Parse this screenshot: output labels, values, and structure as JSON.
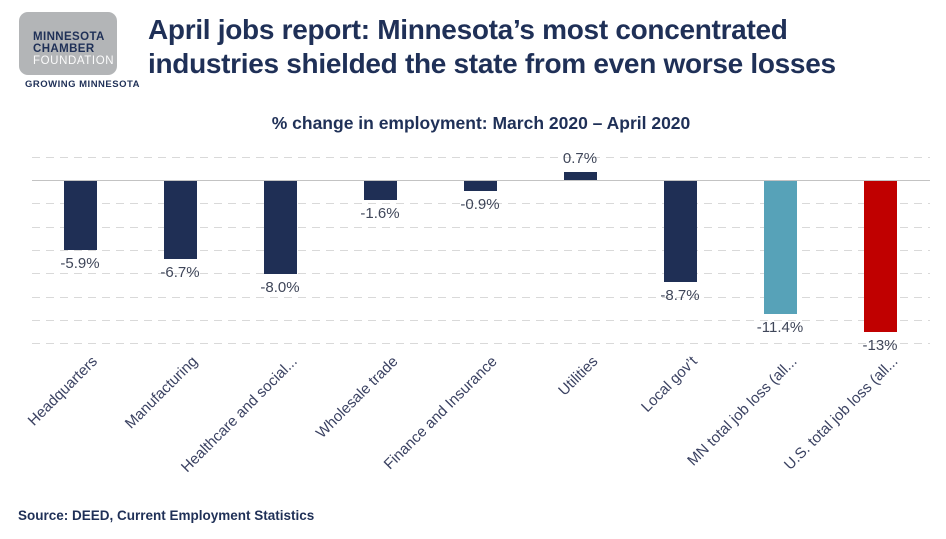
{
  "logo": {
    "line1": "MINNESOTA",
    "line2": "CHAMBER",
    "line3": "FOUNDATION",
    "tagline": "GROWING MINNESOTA"
  },
  "header": {
    "title_line1": "April jobs report: Minnesota’s most concentrated",
    "title_line2": "industries shielded the state from even worse losses"
  },
  "chart_data": {
    "type": "bar",
    "title": "% change in employment: March 2020 – April 2020",
    "categories": [
      "Headquarters",
      "Manufacturing",
      "Healthcare and social...",
      "Wholesale trade",
      "Finance and Insurance",
      "Utilities",
      "Local gov’t",
      "MN total job loss (all...",
      "U.S. total job loss (all..."
    ],
    "values": [
      -5.9,
      -6.7,
      -8.0,
      -1.6,
      -0.9,
      0.7,
      -8.7,
      -11.4,
      -13.0
    ],
    "value_labels": [
      "-5.9%",
      "-6.7%",
      "-8.0%",
      "-1.6%",
      "-0.9%",
      "0.7%",
      "-8.7%",
      "-11.4%",
      "-13%"
    ],
    "bar_colors": [
      "#1f2f55",
      "#1f2f55",
      "#1f2f55",
      "#1f2f55",
      "#1f2f55",
      "#1f2f55",
      "#1f2f55",
      "#57a2b8",
      "#c00000"
    ],
    "xlabel": "",
    "ylabel": "",
    "ylim": [
      -14,
      2
    ],
    "gridline_interval": 2,
    "grid": "dashed-horizontal",
    "legend": "none"
  },
  "footer": {
    "source": "Source: DEED, Current Employment Statistics"
  },
  "colors": {
    "title_navy": "#1f3057",
    "bar_navy": "#1f2f55",
    "bar_teal": "#57a2b8",
    "bar_red": "#c00000",
    "gridline": "#d9d9d9",
    "zero_axis": "#c3c3c3",
    "logo_gray": "#b3b5b7"
  }
}
